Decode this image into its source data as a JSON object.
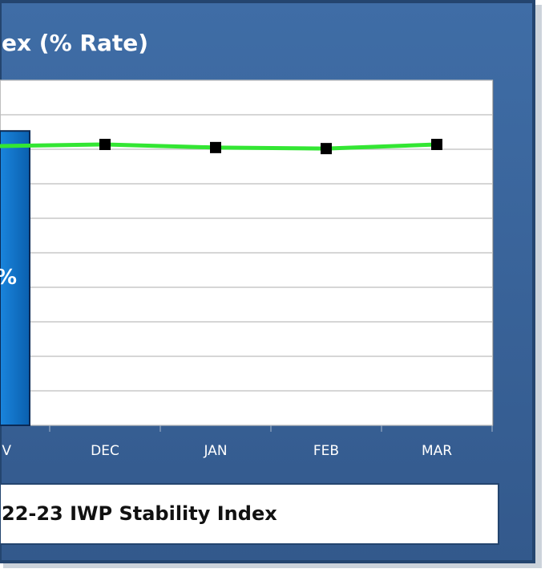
{
  "chart_data": {
    "type": "combo",
    "title": "ex (% Rate)",
    "categories": [
      "V",
      "DEC",
      "JAN",
      "FEB",
      "MAR"
    ],
    "series": [
      {
        "type": "bar",
        "color": "#0b72c9",
        "values": [
          85.3,
          null,
          null,
          null,
          null
        ],
        "value_labels": [
          "%",
          null,
          null,
          null,
          null
        ]
      },
      {
        "type": "line",
        "name": "22-23 IWP Stability Index",
        "color": "#33e633",
        "values": [
          80.9,
          81.4,
          80.5,
          80.2,
          81.4
        ]
      }
    ],
    "ylim": [
      0,
      100
    ],
    "yticks": [
      0,
      10,
      20,
      30,
      40,
      50,
      60,
      70,
      80,
      90,
      100
    ],
    "grid": true
  }
}
